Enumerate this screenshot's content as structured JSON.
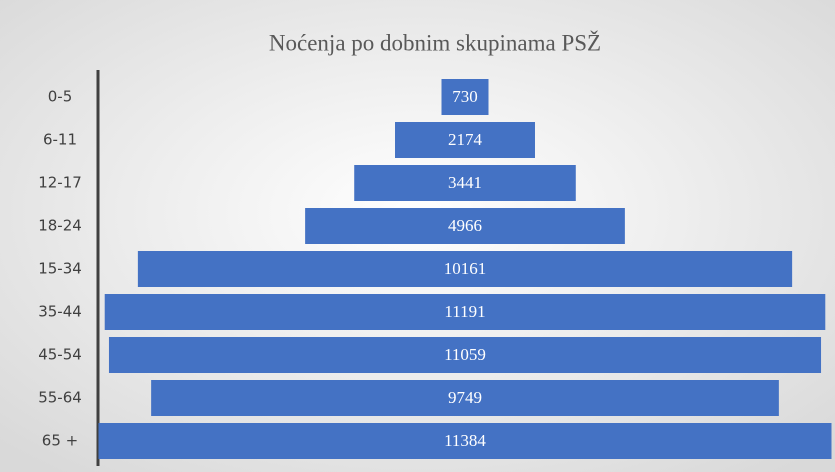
{
  "chart_data": {
    "type": "funnel",
    "title": "Noćenja po dobnim skupinama PSŽ",
    "categories": [
      "0-5",
      "6-11",
      "12-17",
      "18-24",
      "15-34",
      "35-44",
      "45-54",
      "55-64",
      "65 +"
    ],
    "values": [
      730,
      2174,
      3441,
      4966,
      10161,
      11191,
      11059,
      9749,
      11384
    ],
    "color": "#4472c4"
  }
}
